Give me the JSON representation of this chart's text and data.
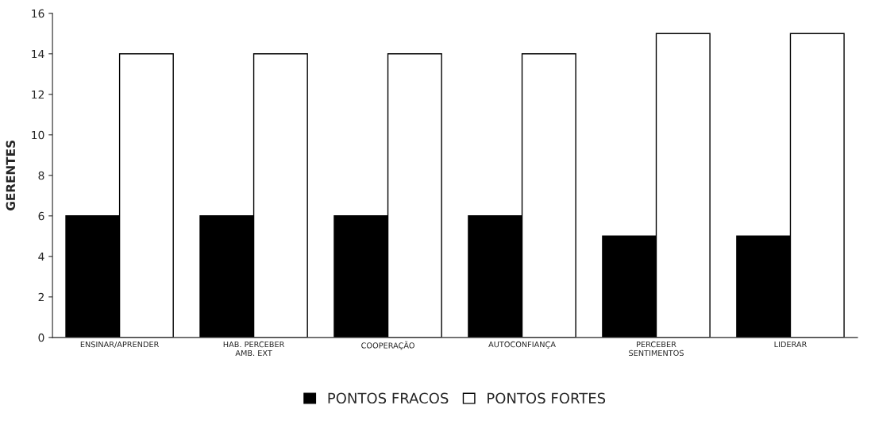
{
  "chart_data": {
    "type": "bar",
    "ylabel": "GERENTES",
    "categories": [
      "ENSINAR/APRENDER",
      "HAB. PERCEBER\nAMB. EXT",
      "COOPERAÇÃO",
      "AUTOCONFIANÇA",
      "PERCEBER\nSENTIMENTOS",
      "LIDERAR"
    ],
    "series": [
      {
        "name": "PONTOS FRACOS",
        "color": "#000000",
        "values": [
          6,
          6,
          6,
          6,
          5,
          5
        ]
      },
      {
        "name": "PONTOS FORTES",
        "color": "#ffffff",
        "values": [
          14,
          14,
          14,
          14,
          15,
          15
        ]
      }
    ],
    "ylim": [
      0,
      16
    ],
    "yticks": [
      0,
      2,
      4,
      6,
      8,
      10,
      12,
      14,
      16
    ],
    "grid": false,
    "legend": "bottom"
  }
}
